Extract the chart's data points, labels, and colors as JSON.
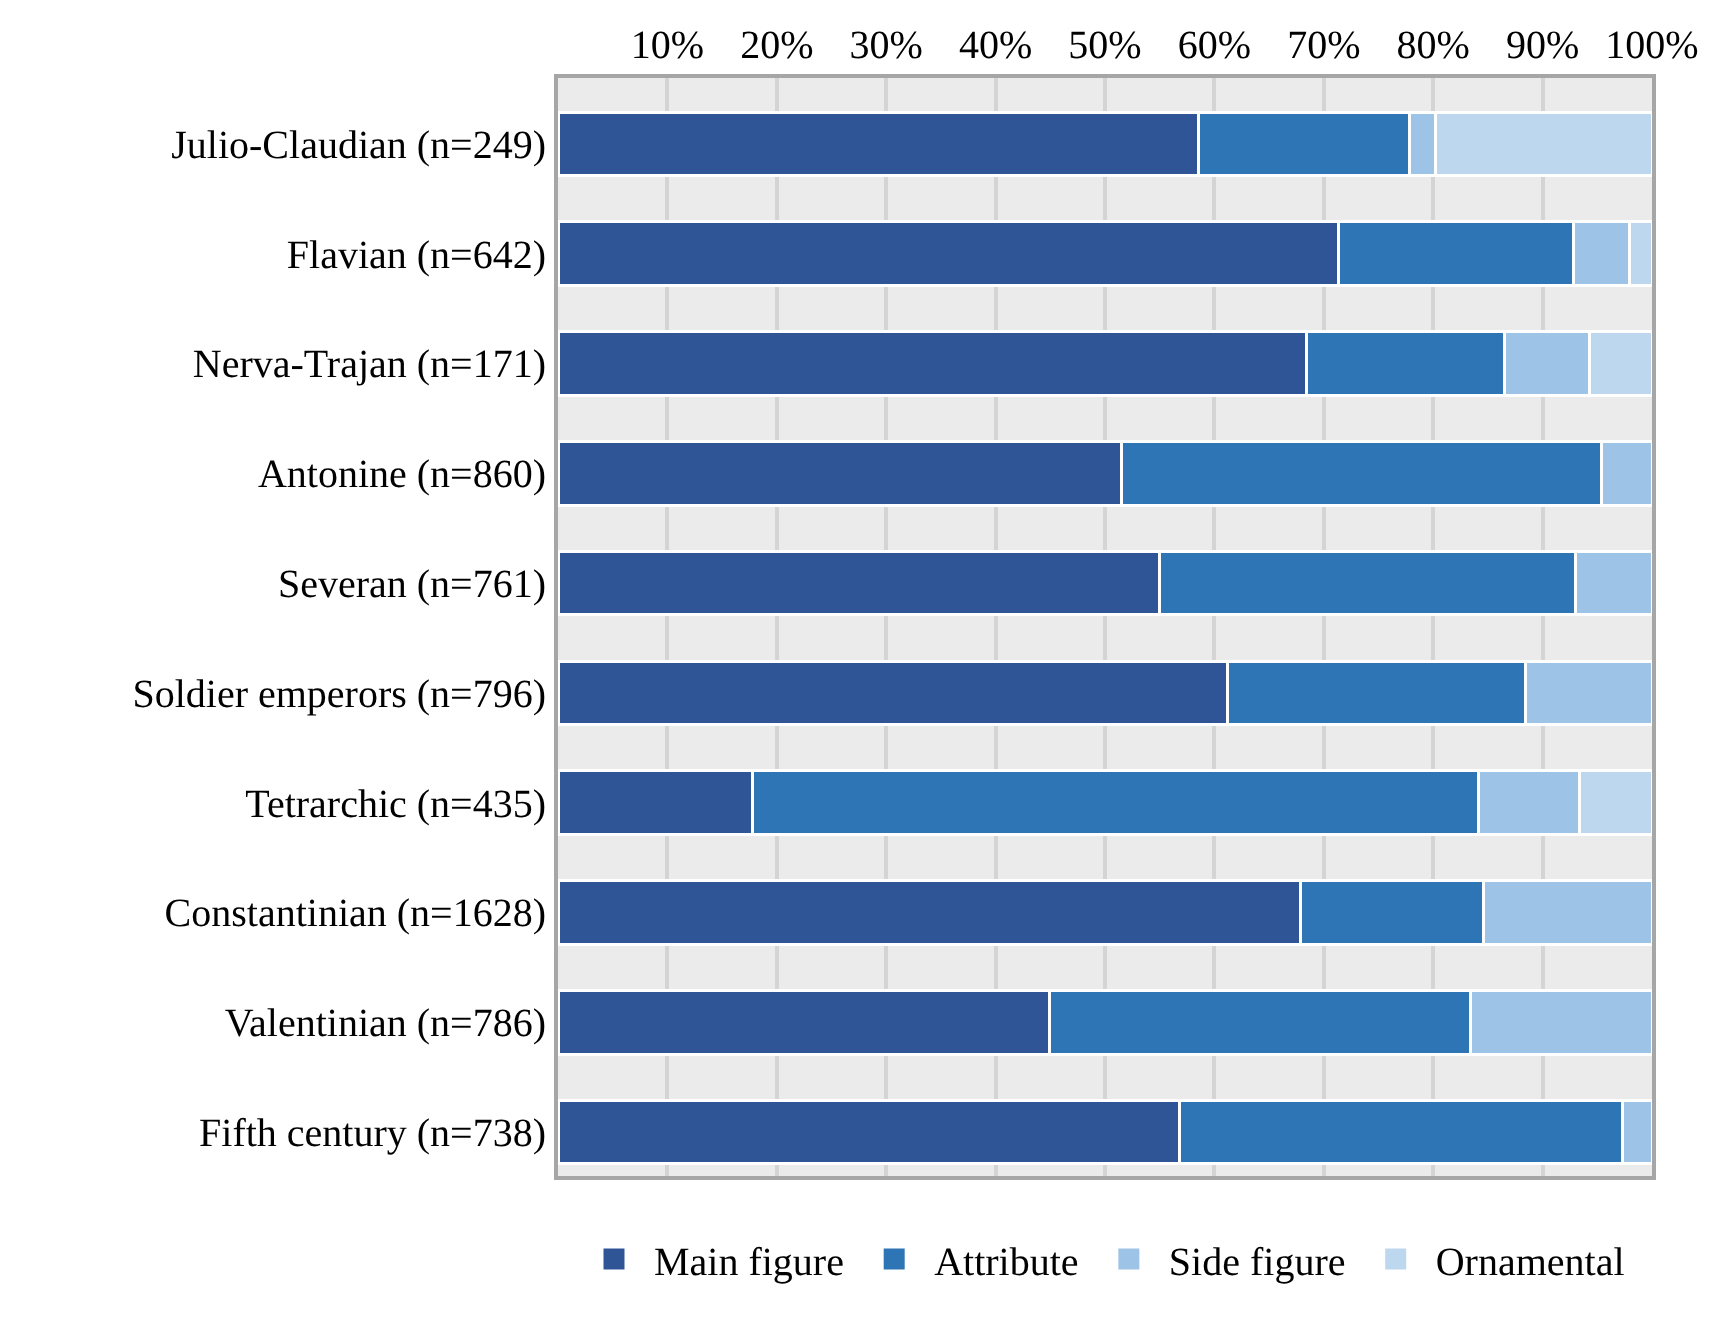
{
  "chart_data": {
    "type": "bar",
    "orientation": "horizontal",
    "stacked": true,
    "categories": [
      "Julio-Claudian (n=249)",
      "Flavian (n=642)",
      "Nerva-Trajan (n=171)",
      "Antonine (n=860)",
      "Severan (n=761)",
      "Soldier emperors (n=796)",
      "Tetrarchic (n=435)",
      "Constantinian (n=1628)",
      "Valentinian (n=786)",
      "Fifth century (n=738)"
    ],
    "series": [
      {
        "name": "Main figure",
        "color": "#2f5597",
        "values": [
          58.5,
          71.3,
          68.4,
          51.5,
          55.0,
          61.2,
          17.8,
          67.9,
          44.9,
          56.8
        ]
      },
      {
        "name": "Attribute",
        "color": "#2e75b6",
        "values": [
          19.3,
          21.5,
          18.1,
          43.9,
          38.0,
          27.2,
          66.3,
          16.7,
          38.5,
          40.5
        ]
      },
      {
        "name": "Side figure",
        "color": "#9dc3e6",
        "values": [
          2.4,
          5.1,
          7.8,
          4.6,
          7.0,
          11.6,
          9.3,
          15.4,
          16.6,
          2.7
        ]
      },
      {
        "name": "Ornamental",
        "color": "#bdd7ee",
        "values": [
          19.8,
          2.1,
          5.7,
          null,
          null,
          null,
          6.6,
          null,
          null,
          null
        ]
      }
    ],
    "xlim": [
      0,
      100
    ],
    "xticks": [
      {
        "value": 10,
        "label": "10%"
      },
      {
        "value": 20,
        "label": "20%"
      },
      {
        "value": 30,
        "label": "30%"
      },
      {
        "value": 40,
        "label": "40%"
      },
      {
        "value": 50,
        "label": "50%"
      },
      {
        "value": 60,
        "label": "60%"
      },
      {
        "value": 70,
        "label": "70%"
      },
      {
        "value": 80,
        "label": "80%"
      },
      {
        "value": 90,
        "label": "90%"
      },
      {
        "value": 100,
        "label": "100%"
      }
    ],
    "grid": "x",
    "legend": "bottom"
  }
}
